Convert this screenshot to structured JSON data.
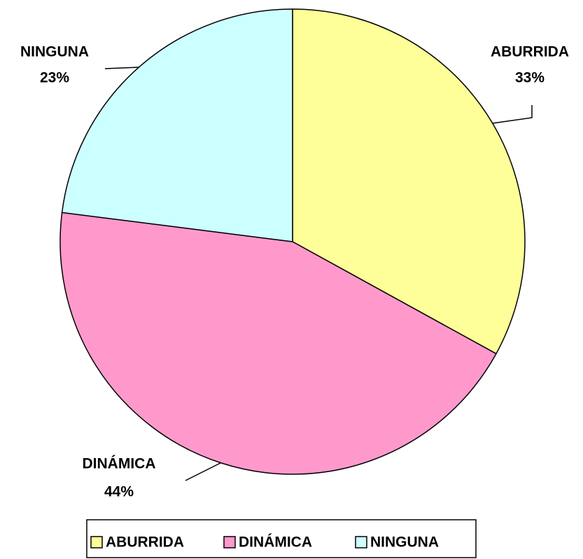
{
  "chart_data": {
    "type": "pie",
    "categories": [
      "ABURRIDA",
      "DINÁMICA",
      "NINGUNA"
    ],
    "values": [
      33,
      44,
      23
    ],
    "value_labels": [
      "33%",
      "44%",
      "23%"
    ],
    "colors": [
      "#ffff99",
      "#ff99cc",
      "#ccffff"
    ],
    "legend": "bottom"
  }
}
